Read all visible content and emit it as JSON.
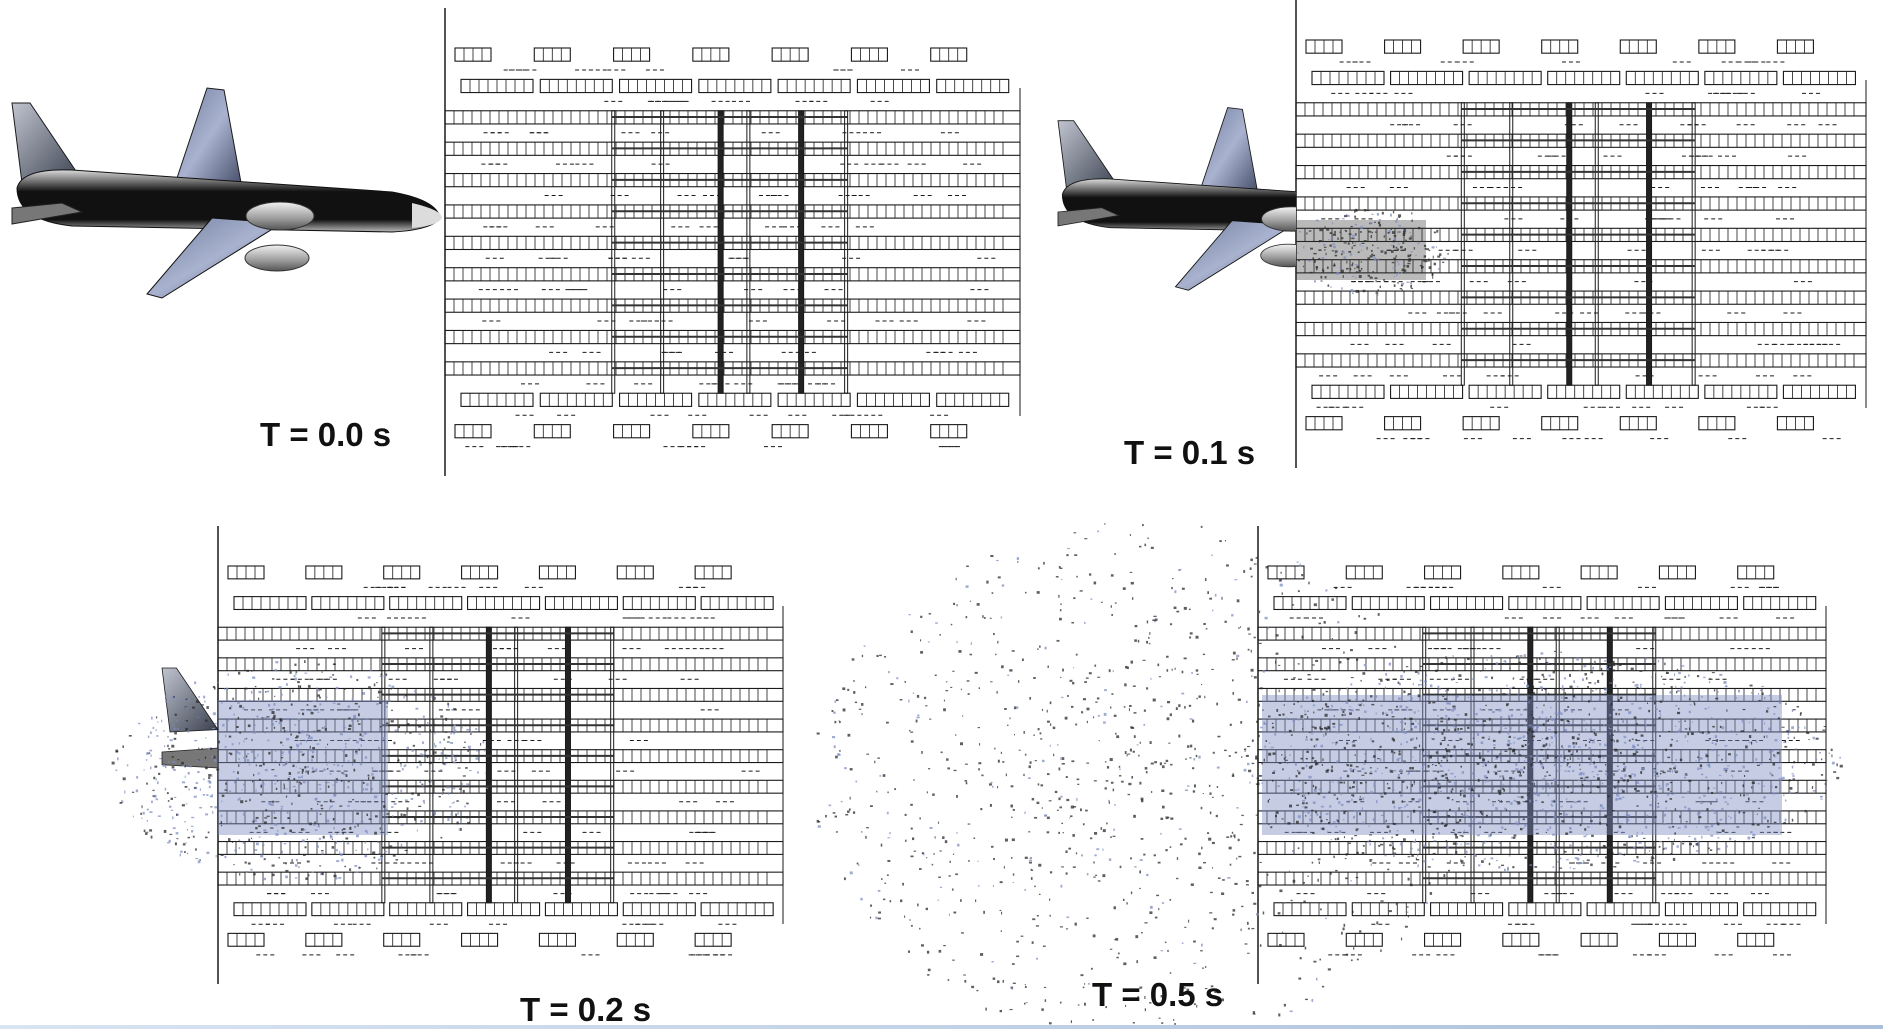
{
  "frames": [
    {
      "id": "t00",
      "time_label": "T = 0.0 s"
    },
    {
      "id": "t01",
      "time_label": "T = 0.1 s"
    },
    {
      "id": "t02",
      "time_label": "T = 0.2 s"
    },
    {
      "id": "t05",
      "time_label": "T = 0.5 s"
    }
  ],
  "colors": {
    "structure": "#1a1a1a",
    "fuselage": "#111111",
    "wing": "#8a96b8",
    "debris_blue": "#7f8fc2",
    "debris_dark": "#2a2a2a",
    "background": "#ffffff"
  }
}
